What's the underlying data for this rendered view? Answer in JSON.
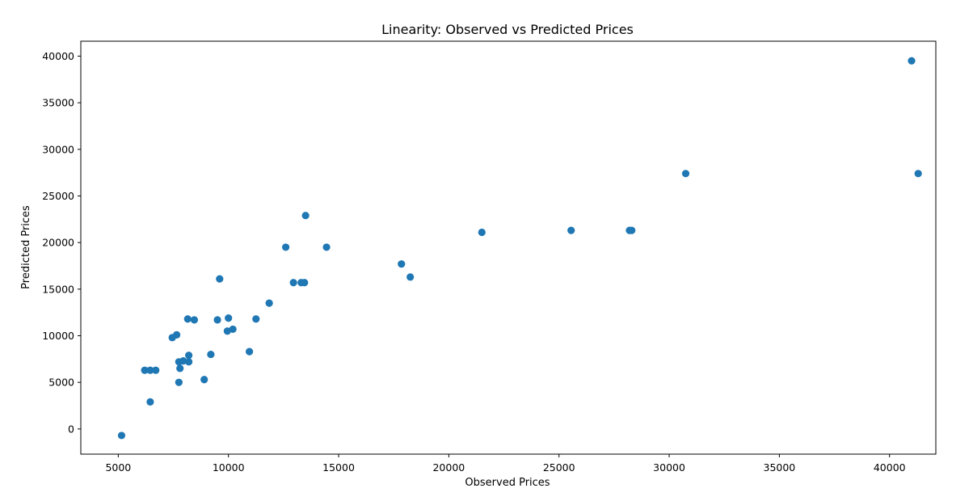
{
  "chart_data": {
    "type": "scatter",
    "title": "Linearity: Observed vs Predicted Prices",
    "xlabel": "Observed Prices",
    "ylabel": "Predicted Prices",
    "xlim": [
      3300,
      42100
    ],
    "ylim": [
      -2700,
      41600
    ],
    "xticks": [
      5000,
      10000,
      15000,
      20000,
      25000,
      30000,
      35000,
      40000
    ],
    "yticks": [
      0,
      5000,
      10000,
      15000,
      20000,
      25000,
      30000,
      35000,
      40000
    ],
    "xtick_labels": [
      "5000",
      "10000",
      "15000",
      "20000",
      "25000",
      "30000",
      "35000",
      "40000"
    ],
    "ytick_labels": [
      "0",
      "5000",
      "10000",
      "15000",
      "20000",
      "25000",
      "30000",
      "35000",
      "40000"
    ],
    "grid": false,
    "point_color": "#1f77b4",
    "points": [
      {
        "x": 5150,
        "y": -700
      },
      {
        "x": 6200,
        "y": 6300
      },
      {
        "x": 6450,
        "y": 6300
      },
      {
        "x": 6700,
        "y": 6300
      },
      {
        "x": 6450,
        "y": 2900
      },
      {
        "x": 7450,
        "y": 9800
      },
      {
        "x": 7650,
        "y": 10100
      },
      {
        "x": 7750,
        "y": 7200
      },
      {
        "x": 7800,
        "y": 6500
      },
      {
        "x": 7750,
        "y": 5000
      },
      {
        "x": 7950,
        "y": 7300
      },
      {
        "x": 8200,
        "y": 7200
      },
      {
        "x": 8200,
        "y": 7900
      },
      {
        "x": 8150,
        "y": 11800
      },
      {
        "x": 8450,
        "y": 11700
      },
      {
        "x": 8900,
        "y": 5300
      },
      {
        "x": 9200,
        "y": 8000
      },
      {
        "x": 9500,
        "y": 11700
      },
      {
        "x": 9600,
        "y": 16100
      },
      {
        "x": 9950,
        "y": 10500
      },
      {
        "x": 10000,
        "y": 11900
      },
      {
        "x": 10200,
        "y": 10700
      },
      {
        "x": 10950,
        "y": 8300
      },
      {
        "x": 11250,
        "y": 11800
      },
      {
        "x": 11850,
        "y": 13500
      },
      {
        "x": 12600,
        "y": 19500
      },
      {
        "x": 12950,
        "y": 15700
      },
      {
        "x": 13300,
        "y": 15700
      },
      {
        "x": 13450,
        "y": 15700
      },
      {
        "x": 13500,
        "y": 22900
      },
      {
        "x": 14450,
        "y": 19500
      },
      {
        "x": 17850,
        "y": 17700
      },
      {
        "x": 18250,
        "y": 16300
      },
      {
        "x": 21500,
        "y": 21100
      },
      {
        "x": 25550,
        "y": 21300
      },
      {
        "x": 28200,
        "y": 21300
      },
      {
        "x": 28300,
        "y": 21300
      },
      {
        "x": 30750,
        "y": 27400
      },
      {
        "x": 41000,
        "y": 39500
      },
      {
        "x": 41300,
        "y": 27400
      }
    ]
  }
}
